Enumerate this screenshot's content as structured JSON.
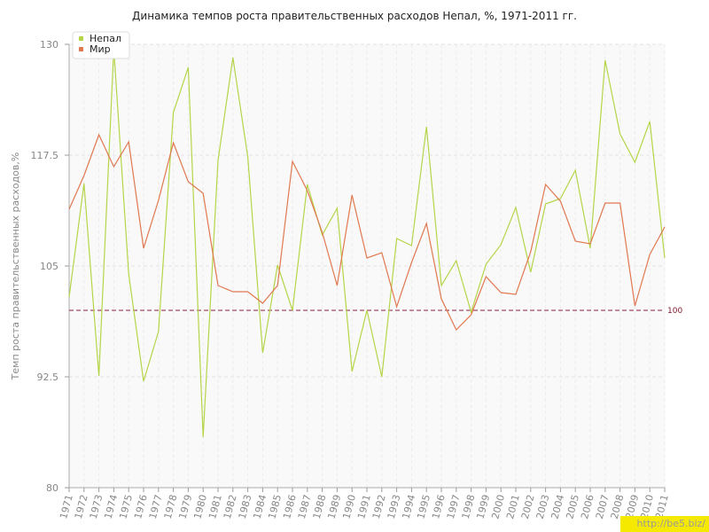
{
  "chart_data": {
    "type": "line",
    "title": "Динамика темпов роста правительственных расходов Непал, %, 1971-2011 гг.",
    "ylabel": "Темп роста правительственных расходов,%",
    "xlabel": "",
    "ylim": [
      80,
      130
    ],
    "yticks": [
      "130",
      "117.5",
      "105",
      "92.5",
      "80"
    ],
    "categories": [
      "1971",
      "1972",
      "1973",
      "1974",
      "1975",
      "1976",
      "1977",
      "1978",
      "1979",
      "1980",
      "1981",
      "1982",
      "1983",
      "1984",
      "1985",
      "1986",
      "1987",
      "1988",
      "1989",
      "1990",
      "1991",
      "1992",
      "1993",
      "1994",
      "1995",
      "1996",
      "1997",
      "1998",
      "1999",
      "2000",
      "2001",
      "2002",
      "2003",
      "2004",
      "2005",
      "2006",
      "2007",
      "2008",
      "2009",
      "2010",
      "2011"
    ],
    "series": [
      {
        "name": "Непал",
        "color": "#b5d548",
        "values": [
          101.5,
          114.3,
          92.6,
          129.5,
          104.1,
          92.0,
          97.6,
          122.3,
          127.4,
          85.7,
          116.9,
          128.5,
          117.3,
          95.2,
          105.1,
          100.0,
          114.2,
          108.5,
          111.5,
          93.1,
          100.0,
          92.5,
          108.1,
          107.3,
          120.7,
          102.8,
          105.6,
          99.8,
          105.2,
          107.4,
          111.6,
          104.3,
          112.0,
          112.6,
          115.8,
          107.0,
          128.2,
          119.9,
          116.7,
          121.3,
          105.9
        ]
      },
      {
        "name": "Мир",
        "color": "#e07850",
        "values": [
          111.4,
          115.2,
          119.8,
          116.2,
          119.0,
          107.0,
          112.4,
          118.9,
          114.5,
          113.2,
          102.8,
          102.1,
          102.1,
          100.8,
          102.8,
          116.8,
          113.5,
          108.8,
          102.8,
          113.0,
          105.9,
          106.5,
          100.4,
          105.4,
          109.8,
          101.3,
          97.8,
          99.5,
          103.8,
          102.0,
          101.8,
          106.6,
          114.2,
          112.3,
          107.8,
          107.5,
          112.1,
          112.1,
          100.5,
          106.3,
          109.4
        ]
      }
    ],
    "reference_line": {
      "value": 100,
      "label": "100",
      "color": "#8a1f3a"
    },
    "grid": true,
    "legend_position": "top-left"
  },
  "watermark": "http://be5.biz/"
}
